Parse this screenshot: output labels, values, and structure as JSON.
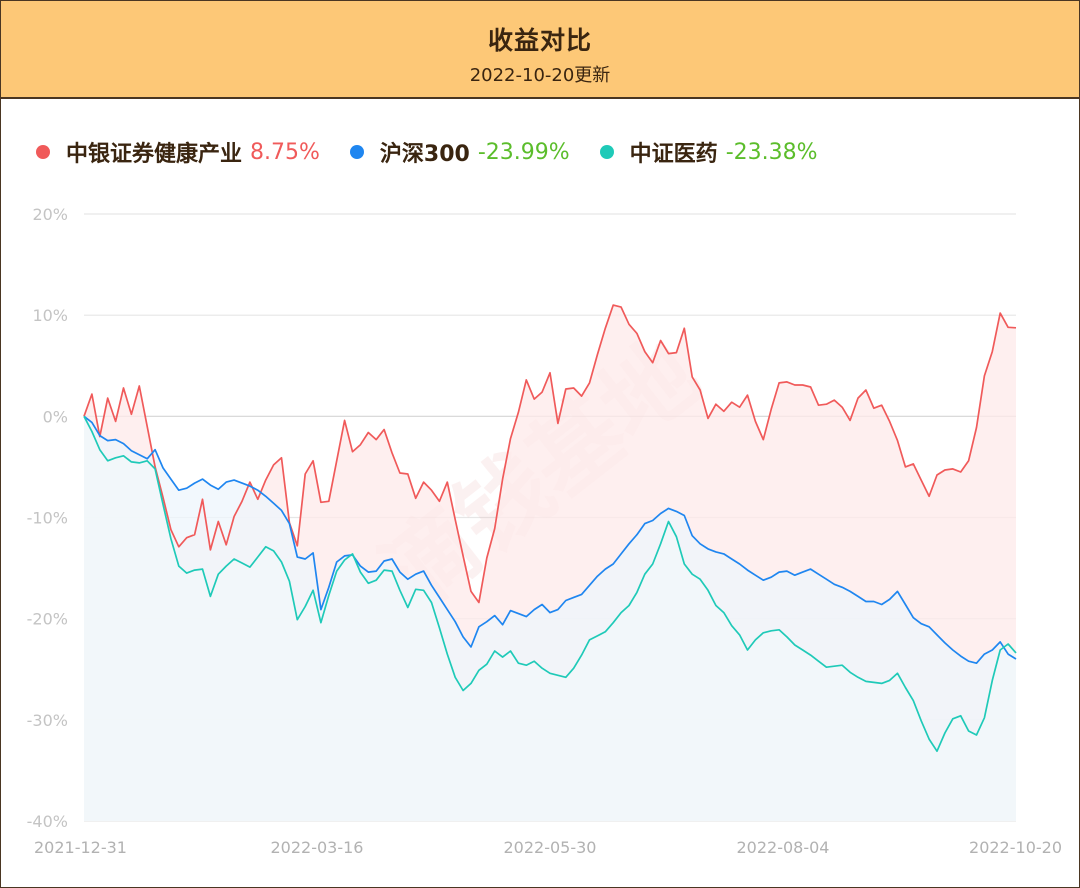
{
  "header": {
    "title": "收益对比",
    "subtitle": "2022-10-20更新"
  },
  "watermark": "滴钱基地",
  "legend": [
    {
      "name": "中银证券健康产业",
      "ret": "8.75%",
      "dot_color": "#f05a5a",
      "ret_color": "#f05a5a"
    },
    {
      "name": "沪深300",
      "ret": "-23.99%",
      "dot_color": "#1f86f0",
      "ret_color": "#5bbd2b"
    },
    {
      "name": "中证医药",
      "ret": "-23.38%",
      "dot_color": "#1fcab8",
      "ret_color": "#5bbd2b"
    }
  ],
  "chart_data": {
    "type": "line",
    "title": "收益对比",
    "x_start": "2021-12-31",
    "x_end": "2022-10-20",
    "x_tick_labels": [
      "2021-12-31",
      "2022-03-16",
      "2022-05-30",
      "2022-08-04",
      "2022-10-20"
    ],
    "y_tick_labels": [
      "20%",
      "10%",
      "0%",
      "-10%",
      "-20%",
      "-30%",
      "-40%"
    ],
    "ylim": [
      -40,
      20
    ],
    "grid": true,
    "legend_position": "top-left",
    "series": [
      {
        "name": "中银证券健康产业",
        "color": "#f05a5a",
        "fill": "#fdeaea",
        "values": [
          0,
          2.2,
          -2,
          1.8,
          -0.5,
          2.8,
          0.2,
          3,
          -1,
          -5,
          -8,
          -11.2,
          -12.9,
          -12,
          -11.7,
          -8.2,
          -13.2,
          -10.4,
          -12.7,
          -9.9,
          -8.4,
          -6.5,
          -8.2,
          -6.3,
          -4.8,
          -4.1,
          -10.5,
          -12.8,
          -5.7,
          -4.4,
          -8.5,
          -8.4,
          -4.4,
          -0.4,
          -3.5,
          -2.8,
          -1.6,
          -2.3,
          -1.3,
          -3.6,
          -5.6,
          -5.7,
          -8.1,
          -6.5,
          -7.3,
          -8.4,
          -6.5,
          -10.2,
          -13.8,
          -17.3,
          -18.4,
          -14,
          -11.1,
          -6.2,
          -2.2,
          0.4,
          3.6,
          1.7,
          2.4,
          4.3,
          -0.7,
          2.7,
          2.8,
          2,
          3.3,
          6.1,
          8.7,
          11,
          10.8,
          9.1,
          8.2,
          6.4,
          5.3,
          7.5,
          6.2,
          6.3,
          8.7,
          3.9,
          2.6,
          -0.2,
          1.2,
          0.5,
          1.4,
          0.9,
          2.1,
          -0.5,
          -2.3,
          0.7,
          3.3,
          3.4,
          3.1,
          3.1,
          2.9,
          1.1,
          1.2,
          1.6,
          0.9,
          -0.4,
          1.8,
          2.6,
          0.8,
          1.1,
          -0.5,
          -2.4,
          -5,
          -4.7,
          -6.3,
          -7.9,
          -5.8,
          -5.3,
          -5.2,
          -5.5,
          -4.4,
          -1.1,
          4,
          6.4,
          10.2,
          8.8,
          8.75
        ]
      },
      {
        "name": "沪深300",
        "color": "#1f86f0",
        "fill": "#eef5fc",
        "values": [
          0,
          -0.6,
          -1.9,
          -2.4,
          -2.3,
          -2.7,
          -3.4,
          -3.8,
          -4.2,
          -3.3,
          -5.1,
          -6.2,
          -7.3,
          -7.1,
          -6.6,
          -6.2,
          -6.8,
          -7.2,
          -6.5,
          -6.3,
          -6.6,
          -6.9,
          -7.3,
          -7.9,
          -8.6,
          -9.3,
          -10.6,
          -13.9,
          -14.1,
          -13.5,
          -19.1,
          -16.9,
          -14.4,
          -13.8,
          -13.7,
          -14.8,
          -15.4,
          -15.3,
          -14.3,
          -14.1,
          -15.4,
          -16.1,
          -15.6,
          -15.3,
          -16.7,
          -17.9,
          -19.1,
          -20.3,
          -21.8,
          -22.8,
          -20.8,
          -20.3,
          -19.7,
          -20.6,
          -19.2,
          -19.5,
          -19.8,
          -19.1,
          -18.6,
          -19.4,
          -19.1,
          -18.2,
          -17.9,
          -17.6,
          -16.7,
          -15.8,
          -15.1,
          -14.6,
          -13.6,
          -12.6,
          -11.7,
          -10.6,
          -10.3,
          -9.6,
          -9.1,
          -9.4,
          -9.8,
          -11.8,
          -12.6,
          -13.1,
          -13.4,
          -13.6,
          -14.1,
          -14.6,
          -15.2,
          -15.7,
          -16.2,
          -15.9,
          -15.4,
          -15.3,
          -15.7,
          -15.4,
          -15.1,
          -15.6,
          -16.1,
          -16.6,
          -16.9,
          -17.3,
          -17.8,
          -18.3,
          -18.3,
          -18.6,
          -18.1,
          -17.3,
          -18.6,
          -19.9,
          -20.5,
          -20.8,
          -21.6,
          -22.4,
          -23.1,
          -23.7,
          -24.2,
          -24.4,
          -23.5,
          -23.1,
          -22.3,
          -23.5,
          -23.99
        ]
      },
      {
        "name": "中证医药",
        "color": "#1fcab8",
        "fill": "#f2f8fa",
        "values": [
          0,
          -1.5,
          -3.3,
          -4.4,
          -4.1,
          -3.9,
          -4.5,
          -4.6,
          -4.4,
          -5.2,
          -8.7,
          -12.1,
          -14.8,
          -15.5,
          -15.2,
          -15.1,
          -17.8,
          -15.6,
          -14.8,
          -14.1,
          -14.5,
          -14.9,
          -13.9,
          -12.9,
          -13.3,
          -14.4,
          -16.3,
          -20.1,
          -18.8,
          -17.2,
          -20.4,
          -17.7,
          -15.3,
          -14.2,
          -13.6,
          -15.4,
          -16.5,
          -16.2,
          -15.2,
          -15.3,
          -17.2,
          -18.9,
          -17.1,
          -17.2,
          -18.4,
          -20.9,
          -23.5,
          -25.8,
          -27.1,
          -26.4,
          -25.1,
          -24.5,
          -23.2,
          -23.8,
          -23.2,
          -24.4,
          -24.6,
          -24.2,
          -24.9,
          -25.4,
          -25.6,
          -25.8,
          -24.9,
          -23.6,
          -22.1,
          -21.7,
          -21.3,
          -20.4,
          -19.4,
          -18.7,
          -17.4,
          -15.6,
          -14.6,
          -12.6,
          -10.4,
          -11.9,
          -14.6,
          -15.6,
          -16.1,
          -17.2,
          -18.7,
          -19.4,
          -20.7,
          -21.6,
          -23.1,
          -22.1,
          -21.4,
          -21.2,
          -21.1,
          -21.8,
          -22.6,
          -23.1,
          -23.6,
          -24.2,
          -24.8,
          -24.7,
          -24.6,
          -25.3,
          -25.8,
          -26.2,
          -26.3,
          -26.4,
          -26.1,
          -25.4,
          -26.8,
          -28.1,
          -30.1,
          -31.9,
          -33.1,
          -31.3,
          -29.9,
          -29.6,
          -31.1,
          -31.5,
          -29.8,
          -26.1,
          -23.1,
          -22.5,
          -23.38
        ]
      }
    ]
  }
}
